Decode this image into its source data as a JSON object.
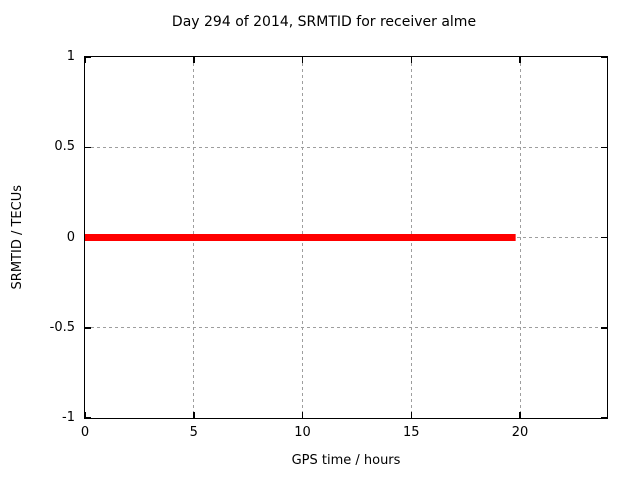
{
  "chart_data": {
    "type": "line",
    "title": "Day 294 of 2014, SRMTID for receiver alme",
    "xlabel": "GPS time / hours",
    "ylabel": "SRMTID / TECUs",
    "xlim": [
      0,
      24
    ],
    "ylim": [
      -1,
      1
    ],
    "xticks": {
      "values": [
        0,
        5,
        10,
        15,
        20
      ],
      "labels": [
        "0",
        "5",
        "10",
        "15",
        "20"
      ]
    },
    "yticks": {
      "values": [
        -1,
        -0.5,
        0,
        0.5,
        1
      ],
      "labels": [
        "-1",
        "-0.5",
        "0",
        "0.5",
        "1"
      ]
    },
    "grid": true,
    "grid_style": "dashed",
    "legend": "none",
    "series": [
      {
        "name": "SRMTID",
        "color": "#ff0000",
        "linewidth": 7,
        "points": [
          [
            0,
            0
          ],
          [
            19.8,
            0
          ]
        ]
      }
    ],
    "colors": {
      "background": "#ffffff",
      "border": "#000000",
      "grid": "#9e9e9e",
      "text": "#000000"
    }
  }
}
